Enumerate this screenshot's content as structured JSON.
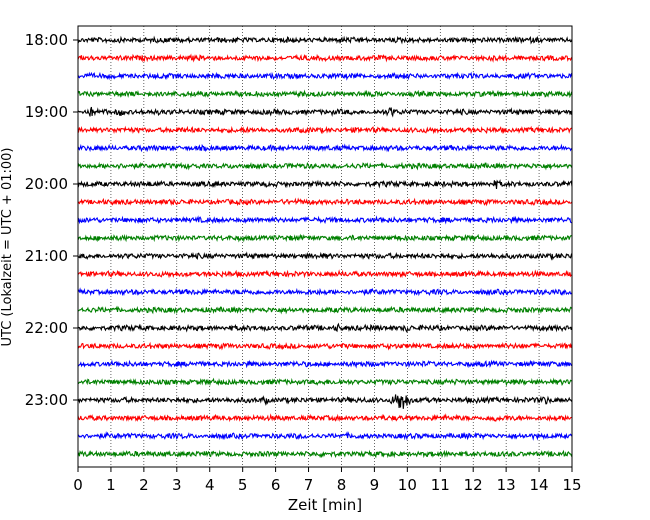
{
  "chart_data": {
    "type": "line",
    "chart_kind": "seismogram helicorder (stacked traces)",
    "title": "",
    "xlabel": "Zeit  [min]",
    "ylabel": "UTC (Lokalzeit = UTC + 01:00)",
    "xlim": [
      0,
      15
    ],
    "x_ticks": [
      0,
      1,
      2,
      3,
      4,
      5,
      6,
      7,
      8,
      9,
      10,
      11,
      12,
      13,
      14,
      15
    ],
    "x_tick_labels": [
      "0",
      "1",
      "2",
      "3",
      "4",
      "5",
      "6",
      "7",
      "8",
      "9",
      "10",
      "11",
      "12",
      "13",
      "14",
      "15"
    ],
    "y_tick_labels": [
      "18:00",
      "19:00",
      "20:00",
      "21:00",
      "22:00",
      "23:00"
    ],
    "grid": "vertical dotted lines at each minute",
    "legend": "none",
    "trace_color_cycle": [
      "#000000",
      "#ff0000",
      "#0000ff",
      "#008000"
    ],
    "traces": [
      {
        "start": "18:00",
        "color": "#000000"
      },
      {
        "start": "18:15",
        "color": "#ff0000"
      },
      {
        "start": "18:30",
        "color": "#0000ff"
      },
      {
        "start": "18:45",
        "color": "#008000"
      },
      {
        "start": "19:00",
        "color": "#000000",
        "events": [
          {
            "minute": 0.4,
            "amp": 1.6
          },
          {
            "minute": 1.3,
            "amp": 1.4
          },
          {
            "minute": 9.5,
            "amp": 1.5
          }
        ]
      },
      {
        "start": "19:15",
        "color": "#ff0000"
      },
      {
        "start": "19:30",
        "color": "#0000ff"
      },
      {
        "start": "19:45",
        "color": "#008000"
      },
      {
        "start": "20:00",
        "color": "#000000",
        "events": [
          {
            "minute": 12.7,
            "amp": 1.4
          }
        ]
      },
      {
        "start": "20:15",
        "color": "#ff0000"
      },
      {
        "start": "20:30",
        "color": "#0000ff"
      },
      {
        "start": "20:45",
        "color": "#008000"
      },
      {
        "start": "21:00",
        "color": "#000000"
      },
      {
        "start": "21:15",
        "color": "#ff0000"
      },
      {
        "start": "21:30",
        "color": "#0000ff"
      },
      {
        "start": "21:45",
        "color": "#008000"
      },
      {
        "start": "22:00",
        "color": "#000000",
        "events": [
          {
            "minute": 7.9,
            "amp": 1.6
          },
          {
            "minute": 10.0,
            "amp": 1.4
          }
        ]
      },
      {
        "start": "22:15",
        "color": "#ff0000"
      },
      {
        "start": "22:30",
        "color": "#0000ff"
      },
      {
        "start": "22:45",
        "color": "#008000"
      },
      {
        "start": "23:00",
        "color": "#000000",
        "events": [
          {
            "minute": 9.8,
            "amp": 5.0
          },
          {
            "minute": 5.7,
            "amp": 1.3
          },
          {
            "minute": 14.2,
            "amp": 1.3
          }
        ]
      },
      {
        "start": "23:15",
        "color": "#ff0000",
        "events": [
          {
            "minute": 12.6,
            "amp": 1.4
          }
        ]
      },
      {
        "start": "23:30",
        "color": "#0000ff"
      },
      {
        "start": "23:45",
        "color": "#008000"
      }
    ]
  }
}
